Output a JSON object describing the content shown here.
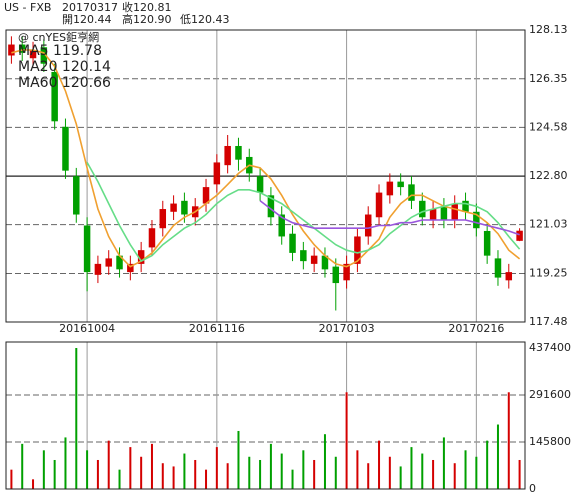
{
  "header": {
    "symbol": "US - FXB",
    "date": "20170317",
    "close": "收120.81",
    "open": "開120.44",
    "high": "高120.90",
    "low": "低120.43"
  },
  "source": "@ cnYES鉅亨網",
  "chart_data": [
    {
      "type": "candlestick",
      "categories": [
        null,
        null,
        null,
        null,
        null,
        null,
        null,
        "20161004",
        null,
        null,
        null,
        null,
        null,
        null,
        null,
        null,
        null,
        null,
        null,
        "20161116",
        null,
        null,
        null,
        null,
        null,
        null,
        null,
        null,
        null,
        null,
        null,
        "20170103",
        null,
        null,
        null,
        null,
        null,
        null,
        null,
        null,
        null,
        null,
        null,
        "20170216",
        null,
        null,
        null,
        null
      ],
      "open": [
        127.2,
        127.6,
        127.1,
        127.5,
        126.6,
        124.6,
        122.8,
        121.0,
        119.2,
        119.5,
        119.9,
        119.3,
        119.6,
        120.2,
        120.9,
        121.5,
        121.9,
        121.3,
        121.8,
        122.5,
        123.2,
        123.9,
        123.5,
        122.8,
        122.1,
        121.4,
        120.7,
        120.1,
        119.6,
        119.9,
        119.5,
        119.0,
        119.6,
        120.6,
        121.3,
        122.1,
        122.6,
        122.5,
        121.9,
        121.2,
        121.7,
        121.2,
        121.9,
        121.5,
        120.8,
        119.8,
        119.0,
        120.44
      ],
      "high": [
        127.9,
        127.9,
        127.7,
        127.8,
        126.9,
        124.9,
        123.1,
        121.3,
        119.9,
        120.1,
        120.2,
        119.9,
        120.4,
        121.2,
        121.9,
        122.1,
        122.2,
        122.0,
        122.7,
        123.6,
        124.3,
        124.2,
        123.8,
        123.1,
        122.4,
        121.7,
        121.0,
        120.4,
        120.2,
        120.2,
        119.8,
        119.9,
        120.9,
        121.7,
        122.5,
        122.9,
        122.9,
        122.8,
        122.2,
        121.9,
        122.0,
        122.1,
        122.2,
        121.8,
        121.1,
        120.1,
        119.6,
        120.9
      ],
      "low": [
        126.9,
        127.0,
        126.8,
        126.6,
        124.5,
        122.7,
        121.1,
        118.6,
        118.9,
        119.2,
        119.1,
        119.0,
        119.3,
        119.9,
        120.6,
        121.2,
        121.1,
        121.0,
        121.5,
        122.2,
        122.9,
        123.0,
        122.6,
        121.9,
        121.0,
        120.3,
        119.7,
        119.4,
        119.3,
        119.1,
        117.9,
        118.7,
        119.3,
        120.3,
        121.0,
        121.8,
        122.1,
        121.6,
        121.0,
        120.9,
        120.9,
        120.9,
        121.2,
        120.6,
        119.6,
        118.8,
        118.7,
        120.43
      ],
      "close": [
        127.6,
        127.3,
        127.4,
        126.9,
        124.8,
        123.0,
        121.4,
        119.3,
        119.6,
        119.8,
        119.4,
        119.6,
        120.1,
        120.9,
        121.6,
        121.8,
        121.4,
        121.7,
        122.4,
        123.3,
        123.9,
        123.4,
        122.9,
        122.2,
        121.3,
        120.6,
        120.0,
        119.7,
        119.9,
        119.4,
        118.9,
        119.6,
        120.6,
        121.4,
        122.2,
        122.6,
        122.4,
        121.9,
        121.3,
        121.6,
        121.2,
        121.8,
        121.5,
        120.9,
        119.9,
        119.1,
        119.3,
        120.81
      ],
      "up_color": "#d40000",
      "down_color": "#00a000",
      "series": [
        {
          "name": "MA5 119.78",
          "color": "#f0a030",
          "values": [
            127.3,
            127.4,
            127.4,
            127.3,
            126.8,
            125.9,
            124.7,
            123.1,
            121.6,
            120.6,
            119.9,
            119.5,
            119.7,
            120.0,
            120.5,
            121.0,
            121.3,
            121.5,
            121.8,
            122.1,
            122.5,
            122.9,
            123.2,
            123.1,
            122.7,
            122.1,
            121.4,
            120.8,
            120.3,
            119.9,
            119.6,
            119.5,
            119.7,
            120.1,
            120.5,
            121.3,
            121.8,
            122.1,
            122.1,
            121.9,
            121.7,
            121.6,
            121.5,
            121.4,
            121.1,
            120.7,
            120.1,
            119.78
          ]
        },
        {
          "name": "MA20 120.14",
          "color": "#66dd88",
          "values": [
            null,
            null,
            null,
            null,
            null,
            null,
            null,
            123.3,
            122.6,
            121.8,
            121.0,
            120.3,
            119.7,
            119.9,
            120.3,
            120.6,
            120.9,
            121.1,
            121.4,
            121.8,
            122.1,
            122.3,
            122.3,
            122.2,
            122.0,
            121.8,
            121.5,
            121.2,
            120.9,
            120.6,
            120.3,
            120.1,
            120.0,
            120.1,
            120.3,
            120.7,
            121.0,
            121.3,
            121.5,
            121.6,
            121.7,
            121.8,
            121.8,
            121.7,
            121.5,
            121.1,
            120.6,
            120.14
          ]
        },
        {
          "name": "MA60 120.66",
          "color": "#9955dd",
          "values": [
            null,
            null,
            null,
            null,
            null,
            null,
            null,
            null,
            null,
            null,
            null,
            null,
            null,
            null,
            null,
            null,
            null,
            null,
            null,
            null,
            null,
            null,
            null,
            121.9,
            121.6,
            121.3,
            121.1,
            121.0,
            120.9,
            120.9,
            120.9,
            120.9,
            120.9,
            120.9,
            121.0,
            121.0,
            121.1,
            121.1,
            121.2,
            121.2,
            121.2,
            121.2,
            121.2,
            121.1,
            121.0,
            120.9,
            120.8,
            120.66
          ]
        }
      ],
      "ylim": [
        117.48,
        128.13
      ],
      "yticks": [
        117.48,
        119.25,
        121.03,
        {
          "value": 122.8,
          "label": "122.80"
        },
        124.58,
        126.35,
        128.13
      ],
      "solid_tick": 122.8
    },
    {
      "type": "bar",
      "color_by": "candle",
      "values": [
        60000,
        140000,
        30000,
        120000,
        90000,
        160000,
        437400,
        120000,
        90000,
        150000,
        60000,
        130000,
        100000,
        140000,
        80000,
        70000,
        110000,
        90000,
        60000,
        130000,
        80000,
        180000,
        100000,
        90000,
        140000,
        110000,
        60000,
        120000,
        90000,
        170000,
        100000,
        300000,
        120000,
        80000,
        150000,
        100000,
        70000,
        130000,
        110000,
        90000,
        160000,
        80000,
        120000,
        100000,
        150000,
        200000,
        300000,
        90000
      ],
      "ylim": [
        0,
        437400
      ],
      "yticks": [
        0,
        145800,
        291600,
        437400
      ]
    }
  ]
}
